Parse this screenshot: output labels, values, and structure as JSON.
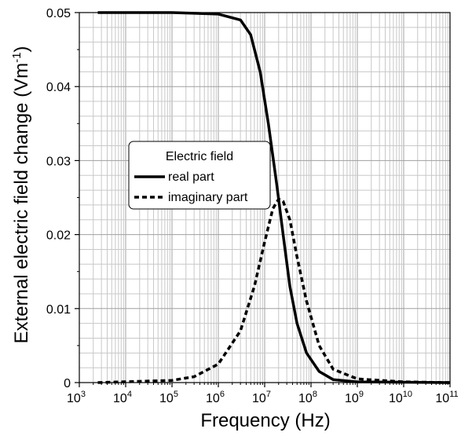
{
  "chart_data": {
    "type": "line",
    "xlabel": "Frequency  (Hz)",
    "ylabel": "External electric field change  (Vm",
    "ylabel_unit_exp": "-1",
    "ylabel_close": ")",
    "x_scale": "log",
    "xlim": [
      1000,
      100000000000
    ],
    "ylim": [
      0,
      0.05
    ],
    "grid": true,
    "x_tick_base": "10",
    "x_tick_exponents": [
      "3",
      "4",
      "5",
      "6",
      "7",
      "8",
      "9",
      "10",
      "11"
    ],
    "y_tick_values": [
      0,
      0.01,
      0.02,
      0.03,
      0.04,
      0.05
    ],
    "y_tick_labels": [
      "0",
      "0.01",
      "0.02",
      "0.03",
      "0.04",
      "0.05"
    ],
    "legend": {
      "title": "Electric field",
      "placement": "center-left",
      "entries": [
        "real part",
        "imaginary part"
      ]
    },
    "series": [
      {
        "name": "real part",
        "style": "solid",
        "x": [
          2500,
          100000,
          1000000,
          3000000,
          5000000,
          8000000,
          12000000,
          18000000,
          25000000,
          35000000,
          50000000,
          80000000,
          150000000,
          300000000,
          1000000000,
          100000000000
        ],
        "y": [
          0.05,
          0.05,
          0.0498,
          0.049,
          0.047,
          0.042,
          0.035,
          0.027,
          0.02,
          0.013,
          0.008,
          0.004,
          0.0015,
          0.0004,
          0.0001,
          0.0
        ]
      },
      {
        "name": "imaginary part",
        "style": "dotted",
        "x": [
          2500,
          100000,
          300000,
          1000000,
          3000000,
          6000000,
          10000000,
          15000000,
          20000000,
          25000000,
          35000000,
          50000000,
          80000000,
          150000000,
          300000000,
          1000000000,
          10000000000,
          100000000000
        ],
        "y": [
          0.0,
          0.0003,
          0.0008,
          0.0025,
          0.007,
          0.013,
          0.019,
          0.0235,
          0.0248,
          0.0245,
          0.022,
          0.017,
          0.011,
          0.005,
          0.0018,
          0.0005,
          0.0001,
          0.0
        ]
      }
    ]
  }
}
